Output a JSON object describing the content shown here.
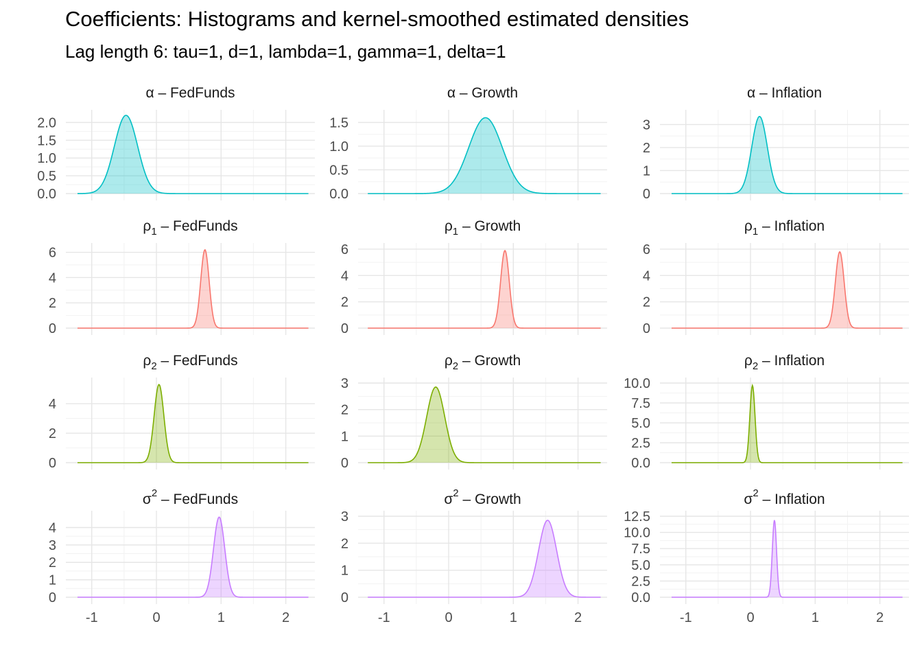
{
  "title": "Coefficients: Histograms and kernel-smoothed estimated densities",
  "subtitle": "Lag length 6: tau=1, d=1, lambda=1, gamma=1, delta=1",
  "chart_data": {
    "type": "area",
    "layout": "facet-grid 4 rows x 3 columns",
    "x_ticks": [
      -1,
      0,
      1,
      2
    ],
    "xlim": [
      -1.4,
      2.45
    ],
    "grid": "on",
    "colors": {
      "alpha": "#00BFC4",
      "rho1": "#F8766D",
      "rho2": "#7CAE00",
      "sigma2": "#C77CFF"
    },
    "rows": [
      {
        "param": "alpha",
        "symbol": "α",
        "superscript": "",
        "subscript": "",
        "color": "#00BFC4",
        "panels": [
          {
            "strip": "α – FedFunds",
            "series": "FedFunds",
            "mean": -0.47,
            "sd": 0.18,
            "peak": 2.2,
            "ylim": [
              0,
              2.2
            ],
            "y_ticks": [
              "0.0",
              "0.5",
              "1.0",
              "1.5",
              "2.0"
            ],
            "y_tick_values": [
              0,
              0.5,
              1.0,
              1.5,
              2.0
            ],
            "x_range": [
              -1.22,
              2.35
            ]
          },
          {
            "strip": "α – Growth",
            "series": "Growth",
            "mean": 0.57,
            "sd": 0.26,
            "peak": 1.6,
            "ylim": [
              0,
              1.65
            ],
            "y_ticks": [
              "0.0",
              "0.5",
              "1.0",
              "1.5"
            ],
            "y_tick_values": [
              0,
              0.5,
              1.0,
              1.5
            ],
            "x_range": [
              -1.25,
              2.35
            ]
          },
          {
            "strip": "α – Inflation",
            "series": "Inflation",
            "mean": 0.14,
            "sd": 0.12,
            "peak": 3.35,
            "ylim": [
              0,
              3.4
            ],
            "y_ticks": [
              "0",
              "1",
              "2",
              "3"
            ],
            "y_tick_values": [
              0,
              1,
              2,
              3
            ],
            "x_range": [
              -1.22,
              2.35
            ]
          }
        ]
      },
      {
        "param": "rho1",
        "symbol": "ρ",
        "superscript": "",
        "subscript": "1",
        "color": "#F8766D",
        "panels": [
          {
            "strip": "ρ1 – FedFunds",
            "series": "FedFunds",
            "mean": 0.75,
            "sd": 0.065,
            "peak": 6.2,
            "ylim": [
              0,
              6.3
            ],
            "y_ticks": [
              "0",
              "2",
              "4",
              "6"
            ],
            "y_tick_values": [
              0,
              2,
              4,
              6
            ],
            "x_range": [
              -1.22,
              2.35
            ]
          },
          {
            "strip": "ρ1 – Growth",
            "series": "Growth",
            "mean": 0.87,
            "sd": 0.067,
            "peak": 5.9,
            "ylim": [
              0,
              6.05
            ],
            "y_ticks": [
              "0",
              "2",
              "4",
              "6"
            ],
            "y_tick_values": [
              0,
              2,
              4,
              6
            ],
            "x_range": [
              -1.25,
              2.35
            ]
          },
          {
            "strip": "ρ1 – Inflation",
            "series": "Inflation",
            "mean": 1.38,
            "sd": 0.068,
            "peak": 5.8,
            "ylim": [
              0,
              6.05
            ],
            "y_ticks": [
              "0",
              "2",
              "4",
              "6"
            ],
            "y_tick_values": [
              0,
              2,
              4,
              6
            ],
            "x_range": [
              -1.22,
              2.35
            ]
          }
        ]
      },
      {
        "param": "rho2",
        "symbol": "ρ",
        "superscript": "",
        "subscript": "2",
        "color": "#7CAE00",
        "panels": [
          {
            "strip": "ρ2 – FedFunds",
            "series": "FedFunds",
            "mean": 0.04,
            "sd": 0.075,
            "peak": 5.3,
            "ylim": [
              0,
              5.4
            ],
            "y_ticks": [
              "0",
              "2",
              "4"
            ],
            "y_tick_values": [
              0,
              2,
              4
            ],
            "x_range": [
              -1.22,
              2.35
            ]
          },
          {
            "strip": "ρ2 – Growth",
            "series": "Growth",
            "mean": -0.2,
            "sd": 0.14,
            "peak": 2.85,
            "ylim": [
              0,
              3.0
            ],
            "y_ticks": [
              "0",
              "1",
              "2",
              "3"
            ],
            "y_tick_values": [
              0,
              1,
              2,
              3
            ],
            "x_range": [
              -1.25,
              2.35
            ]
          },
          {
            "strip": "ρ2 – Inflation",
            "series": "Inflation",
            "mean": 0.03,
            "sd": 0.04,
            "peak": 9.7,
            "ylim": [
              0,
              10.0
            ],
            "y_ticks": [
              "0.0",
              "2.5",
              "5.0",
              "7.5",
              "10.0"
            ],
            "y_tick_values": [
              0,
              2.5,
              5.0,
              7.5,
              10.0
            ],
            "x_range": [
              -1.22,
              2.35
            ]
          }
        ]
      },
      {
        "param": "sigma2",
        "symbol": "σ",
        "superscript": "2",
        "subscript": "",
        "color": "#C77CFF",
        "panels": [
          {
            "strip": "σ2 – FedFunds",
            "series": "FedFunds",
            "mean": 0.97,
            "sd": 0.087,
            "peak": 4.6,
            "ylim": [
              0,
              4.65
            ],
            "y_ticks": [
              "0",
              "1",
              "2",
              "3",
              "4"
            ],
            "y_tick_values": [
              0,
              1,
              2,
              3,
              4
            ],
            "x_range": [
              -1.22,
              2.35
            ]
          },
          {
            "strip": "σ2 – Growth",
            "series": "Growth",
            "mean": 1.53,
            "sd": 0.14,
            "peak": 2.85,
            "ylim": [
              0,
              3.0
            ],
            "y_ticks": [
              "0",
              "1",
              "2",
              "3"
            ],
            "y_tick_values": [
              0,
              1,
              2,
              3
            ],
            "x_range": [
              -1.25,
              2.35
            ]
          },
          {
            "strip": "σ2 – Inflation",
            "series": "Inflation",
            "mean": 0.37,
            "sd": 0.033,
            "peak": 11.9,
            "ylim": [
              0,
              12.5
            ],
            "y_ticks": [
              "0.0",
              "2.5",
              "5.0",
              "7.5",
              "10.0",
              "12.5"
            ],
            "y_tick_values": [
              0,
              2.5,
              5.0,
              7.5,
              10.0,
              12.5
            ],
            "x_range": [
              -1.22,
              2.35
            ]
          }
        ]
      }
    ]
  }
}
